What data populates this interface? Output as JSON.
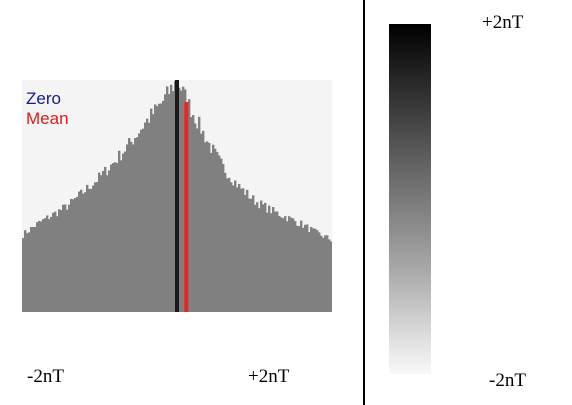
{
  "chart_data": [
    {
      "type": "histogram",
      "x_range_labels": [
        "-2nT",
        "+2nT"
      ],
      "xlim": [
        -2,
        2
      ],
      "legend": [
        "Zero",
        "Mean"
      ],
      "legend_placement": "top-left",
      "colors": {
        "bars": "#808080",
        "zero": "#1a1a1a",
        "mean": "#ee2222",
        "zero_text": "#1a1a8c",
        "mean_text": "#d62020",
        "background": "#f4f4f4"
      },
      "zero_value": 0.0,
      "mean_value": 0.12,
      "bins_profile": {
        "x": [
          -2.0,
          -1.8,
          -1.6,
          -1.4,
          -1.2,
          -1.0,
          -0.8,
          -0.6,
          -0.4,
          -0.2,
          -0.1,
          0.0,
          0.1,
          0.2,
          0.4,
          0.6,
          0.8,
          1.0,
          1.2,
          1.4,
          1.6,
          1.8,
          2.0
        ],
        "relative_count": [
          0.33,
          0.38,
          0.42,
          0.46,
          0.52,
          0.58,
          0.65,
          0.73,
          0.82,
          0.9,
          0.95,
          1.0,
          0.93,
          0.86,
          0.73,
          0.62,
          0.54,
          0.48,
          0.44,
          0.41,
          0.38,
          0.34,
          0.31
        ]
      }
    },
    {
      "type": "colorbar",
      "min_label": "-2nT",
      "max_label": "+2nT",
      "range": [
        -2,
        2
      ],
      "colormap": "grayscale (white = -2nT, black = +2nT)"
    }
  ]
}
